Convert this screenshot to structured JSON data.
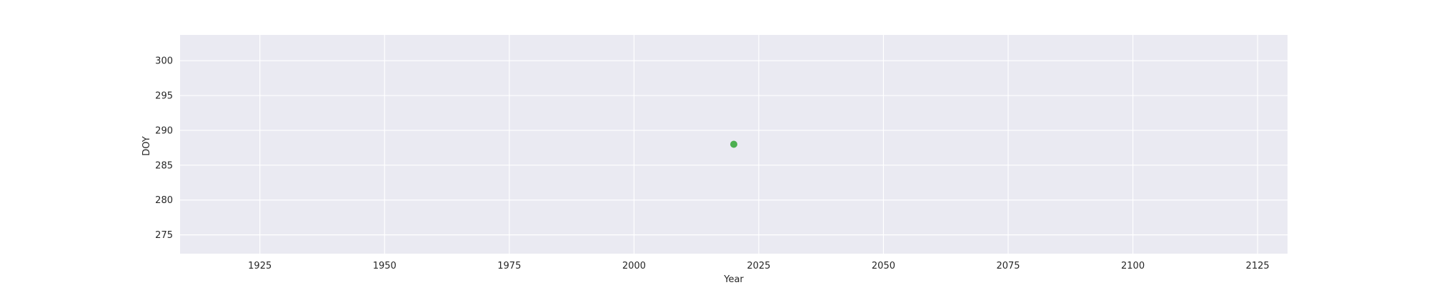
{
  "chart_data": {
    "type": "scatter",
    "title": "",
    "xlabel": "Year",
    "ylabel": "DOY",
    "xlim": [
      1909,
      2131
    ],
    "ylim": [
      272.3,
      303.7
    ],
    "x_ticks": [
      1925,
      1950,
      1975,
      2000,
      2025,
      2050,
      2075,
      2100,
      2125
    ],
    "y_ticks": [
      275,
      280,
      285,
      290,
      295,
      300
    ],
    "grid": true,
    "legend": "none",
    "series": [
      {
        "color": "#4caf50",
        "points": [
          {
            "x": 2020,
            "y": 288
          }
        ]
      }
    ]
  }
}
